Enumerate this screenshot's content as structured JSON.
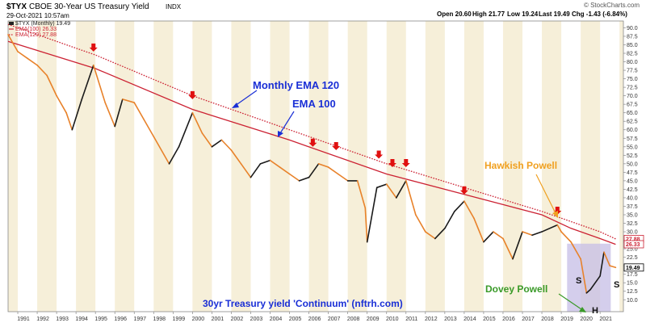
{
  "header": {
    "symbol": "$TYX",
    "name": "CBOE 30-Year US Treasury Yield",
    "exchange": "INDX",
    "date": "29-Oct-2021 10:57am",
    "credit": "© StockCharts.com",
    "quote": {
      "open": "Open 20.60",
      "high": "High 21.77",
      "low": "Low 19.24",
      "last": "Last 19.49",
      "chg": "Chg -1.43 (-6.84%)"
    }
  },
  "legend": {
    "items": [
      {
        "label": "$TYX (Monthly) 19.49",
        "color": "#222222",
        "style": "bar"
      },
      {
        "label": "EMA(100) 26.33",
        "color": "#cc2233",
        "style": "solid"
      },
      {
        "label": "EMA(120) 27.88",
        "color": "#cc2233",
        "style": "dotted"
      }
    ]
  },
  "annotations": {
    "ema120_label": "Monthly EMA 120",
    "ema100_label": "EMA 100",
    "hawkish_label": "Hawkish Powell",
    "dovey_label": "Dovey Powell",
    "footer_label": "30yr Treasury yield 'Continuum' (nftrh.com)",
    "hs_left": "S",
    "hs_head": "H",
    "hs_right": "S"
  },
  "price_tags": {
    "ema120": "27.88",
    "ema100": "26.33",
    "last": "19.49"
  },
  "colors": {
    "price_up": "#1a1a1a",
    "price_down": "#e8822a",
    "ema": "#cc2233",
    "blue_text": "#1a2fd6",
    "orange_text": "#f0a020",
    "green_text": "#3a9a28",
    "stripe": "#f6efd9",
    "pattern_box": "#c6bde6"
  },
  "chart_data": {
    "type": "line",
    "title": "CBOE 30-Year US Treasury Yield",
    "xlabel": "",
    "ylabel": "",
    "xlim": [
      1990.5,
      2022.2
    ],
    "ylim": [
      6.5,
      92
    ],
    "y_ticks": [
      10,
      12.5,
      15,
      17.5,
      20,
      22.5,
      25,
      27.5,
      30,
      32.5,
      35,
      37.5,
      40,
      42.5,
      45,
      47.5,
      50,
      52.5,
      55,
      57.5,
      60,
      62.5,
      65,
      67.5,
      70,
      72.5,
      75,
      77.5,
      80,
      82.5,
      85,
      87.5,
      90
    ],
    "x_ticks": [
      1991,
      1992,
      1993,
      1994,
      1995,
      1996,
      1997,
      1998,
      1999,
      2000,
      2001,
      2002,
      2003,
      2004,
      2005,
      2006,
      2007,
      2008,
      2009,
      2010,
      2011,
      2012,
      2013,
      2014,
      2015,
      2016,
      2017,
      2018,
      2019,
      2020,
      2021
    ],
    "grid": false,
    "legend_position": "top-left",
    "series": [
      {
        "name": "$TYX (Monthly) 19.49",
        "style": "price",
        "x": [
          1990.5,
          1991.0,
          1991.5,
          1992.0,
          1992.5,
          1993.0,
          1993.5,
          1993.8,
          1994.3,
          1994.9,
          1995.5,
          1996.0,
          1996.4,
          1997.0,
          1997.5,
          1998.0,
          1998.8,
          1999.3,
          2000.0,
          2000.5,
          2001.0,
          2001.5,
          2002.0,
          2002.5,
          2003.0,
          2003.5,
          2004.0,
          2004.5,
          2005.0,
          2005.5,
          2006.0,
          2006.5,
          2007.0,
          2007.5,
          2008.0,
          2008.5,
          2008.9,
          2009.0,
          2009.5,
          2010.0,
          2010.5,
          2011.0,
          2011.5,
          2012.0,
          2012.5,
          2013.0,
          2013.5,
          2014.0,
          2014.5,
          2015.0,
          2015.5,
          2016.0,
          2016.5,
          2017.0,
          2017.5,
          2018.0,
          2018.8,
          2019.0,
          2019.5,
          2020.0,
          2020.3,
          2020.5,
          2021.0,
          2021.2,
          2021.5,
          2021.8
        ],
        "values": [
          88,
          83,
          81,
          79,
          76,
          70,
          65,
          60,
          69,
          79,
          68,
          61,
          69,
          68,
          63,
          58,
          50,
          55,
          65,
          59,
          55,
          57,
          54,
          50,
          46,
          50,
          51,
          49,
          47,
          45,
          46,
          50,
          49,
          47,
          45,
          45,
          37,
          27,
          43,
          44,
          40,
          45,
          35,
          30,
          28,
          31,
          36,
          39,
          34,
          27,
          30,
          28,
          22,
          30,
          29,
          30,
          32,
          30,
          27,
          22,
          12,
          13,
          17,
          24,
          20,
          19.5
        ]
      },
      {
        "name": "EMA(100) 26.33",
        "style": "solid",
        "x": [
          1990.5,
          1995.0,
          2000.0,
          2005.0,
          2010.0,
          2014.0,
          2018.0,
          2019.5,
          2021.0,
          2021.8
        ],
        "values": [
          86,
          78,
          66,
          57,
          47,
          41,
          35,
          31,
          28,
          26.3
        ]
      },
      {
        "name": "EMA(120) 27.88",
        "style": "dotted",
        "x": [
          1990.5,
          1995.0,
          2000.0,
          2005.0,
          2010.0,
          2014.0,
          2018.0,
          2019.5,
          2021.0,
          2021.8
        ],
        "values": [
          91,
          82,
          70,
          60,
          50,
          43,
          36,
          33,
          30,
          27.9
        ]
      }
    ],
    "markers": [
      {
        "type": "red-arrow",
        "x": 1994.9,
        "y": 83
      },
      {
        "type": "red-arrow",
        "x": 2000.0,
        "y": 69
      },
      {
        "type": "red-arrow",
        "x": 2006.2,
        "y": 55
      },
      {
        "type": "red-arrow",
        "x": 2007.4,
        "y": 54
      },
      {
        "type": "red-arrow",
        "x": 2009.6,
        "y": 51.5
      },
      {
        "type": "red-arrow",
        "x": 2010.3,
        "y": 49
      },
      {
        "type": "red-arrow",
        "x": 2011.0,
        "y": 49
      },
      {
        "type": "red-arrow",
        "x": 2014.0,
        "y": 41
      },
      {
        "type": "red-arrow",
        "x": 2018.8,
        "y": 35
      }
    ]
  }
}
